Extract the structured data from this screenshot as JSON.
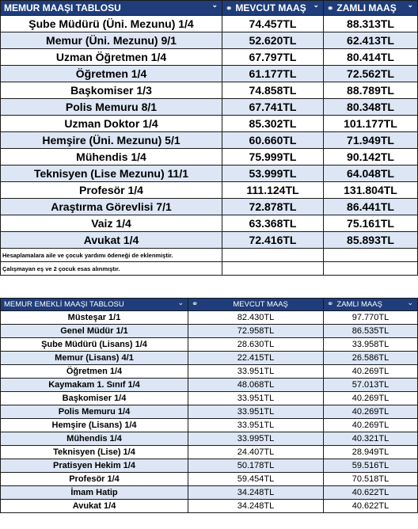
{
  "table1": {
    "headers": [
      "MEMUR MAAŞI TABLOSU",
      "MEVCUT MAAŞ",
      "ZAMLI MAAŞ"
    ],
    "rows": [
      [
        "Şube Müdürü (Üni. Mezunu) 1/4",
        "74.457TL",
        "88.313TL"
      ],
      [
        "Memur (Üni. Mezunu) 9/1",
        "52.620TL",
        "62.413TL"
      ],
      [
        "Uzman Öğretmen 1/4",
        "67.797TL",
        "80.414TL"
      ],
      [
        "Öğretmen 1/4",
        "61.177TL",
        "72.562TL"
      ],
      [
        "Başkomiser 1/3",
        "74.858TL",
        "88.789TL"
      ],
      [
        "Polis Memuru 8/1",
        "67.741TL",
        "80.348TL"
      ],
      [
        "Uzman Doktor 1/4",
        "85.302TL",
        "101.177TL"
      ],
      [
        "Hemşire (Üni. Mezunu) 5/1",
        "60.660TL",
        "71.949TL"
      ],
      [
        "Mühendis 1/4",
        "75.999TL",
        "90.142TL"
      ],
      [
        "Teknisyen (Lise Mezunu) 11/1",
        "53.999TL",
        "64.048TL"
      ],
      [
        "Profesör 1/4",
        "111.124TL",
        "131.804TL"
      ],
      [
        "Araştırma Görevlisi 7/1",
        "72.878TL",
        "86.441TL"
      ],
      [
        "Vaiz 1/4",
        "63.368TL",
        "75.161TL"
      ],
      [
        "Avukat 1/4",
        "72.416TL",
        "85.893TL"
      ]
    ],
    "notes": [
      "Hesaplamalara aile ve çocuk yardımı ödeneği de eklenmiştir.",
      "Çalışmayan eş ve 2 çocuk esas alınmıştır."
    ]
  },
  "table2": {
    "headers": [
      "MEMUR EMEKLİ MAAŞI TABLOSU",
      "MEVCUT MAAŞ",
      "ZAMLI MAAŞ"
    ],
    "rows": [
      [
        "Müsteşar 1/1",
        "82.430TL",
        "97.770TL"
      ],
      [
        "Genel Müdür 1/1",
        "72.958TL",
        "86.535TL"
      ],
      [
        "Şube Müdürü (Lisans) 1/4",
        "28.630TL",
        "33.958TL"
      ],
      [
        "Memur (Lisans) 4/1",
        "22.415TL",
        "26.586TL"
      ],
      [
        "Öğretmen 1/4",
        "33.951TL",
        "40.269TL"
      ],
      [
        "Kaymakam 1. Sınıf 1/4",
        "48.068TL",
        "57.013TL"
      ],
      [
        "Başkomiser 1/4",
        "33.951TL",
        "40.269TL"
      ],
      [
        "Polis Memuru 1/4",
        "33.951TL",
        "40.269TL"
      ],
      [
        "Hemşire (Lisans) 1/4",
        "33.951TL",
        "40.269TL"
      ],
      [
        "Mühendis 1/4",
        "33.995TL",
        "40.321TL"
      ],
      [
        "Teknisyen (Lise) 1/4",
        "24.407TL",
        "28.949TL"
      ],
      [
        "Pratisyen Hekim 1/4",
        "50.178TL",
        "59.516TL"
      ],
      [
        "Profesör 1/4",
        "59.454TL",
        "70.518TL"
      ],
      [
        "İmam Hatip",
        "34.248TL",
        "40.622TL"
      ],
      [
        "Avukat 1/4",
        "34.248TL",
        "40.622TL"
      ]
    ]
  },
  "colors": {
    "header_bg": "#1f3d7a",
    "row_alt": "#dce6f4"
  },
  "icons": {
    "link": "link-icon",
    "dropdown": "chevron-down-icon"
  }
}
